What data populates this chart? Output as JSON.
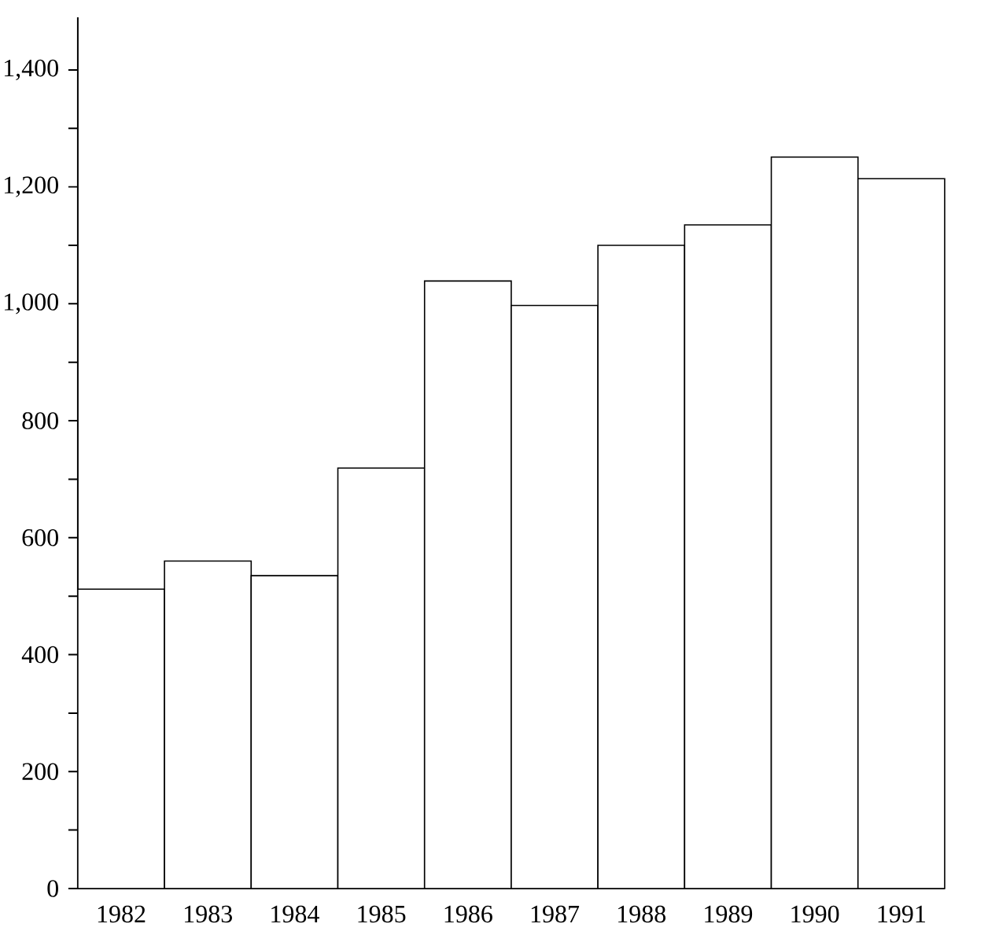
{
  "chart_data": {
    "type": "bar",
    "categories": [
      "1982",
      "1983",
      "1984",
      "1985",
      "1986",
      "1987",
      "1988",
      "1989",
      "1990",
      "1991"
    ],
    "values": [
      512,
      560,
      535,
      719,
      1039,
      997,
      1100,
      1135,
      1251,
      1214
    ],
    "color": "#ffffff",
    "ylim": [
      0,
      1490
    ],
    "yticks": [
      0,
      {
        "value": 100,
        "label": null
      },
      200,
      {
        "value": 300,
        "label": null
      },
      400,
      {
        "value": 500,
        "label": null
      },
      600,
      {
        "value": 700,
        "label": null
      },
      800,
      {
        "value": 900,
        "label": null
      },
      {
        "value": 1000,
        "label": "1,000"
      },
      {
        "value": 1100,
        "label": null
      },
      {
        "value": 1200,
        "label": "1,200"
      },
      {
        "value": 1300,
        "label": null
      },
      {
        "value": 1400,
        "label": "1,400"
      }
    ],
    "grid": false
  }
}
